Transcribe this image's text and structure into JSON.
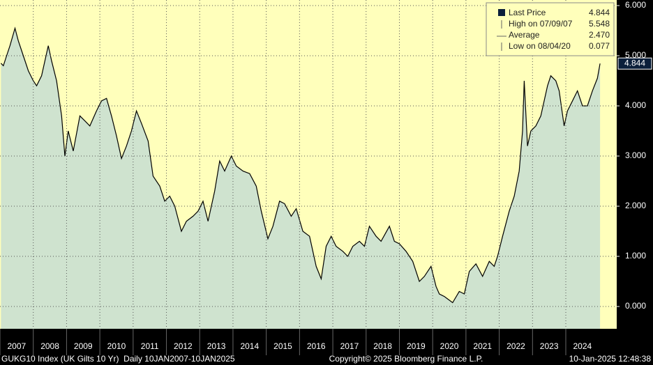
{
  "chart_data": {
    "type": "area",
    "x": [
      2007.03,
      2007.1,
      2007.2,
      2007.3,
      2007.45,
      2007.55,
      2007.7,
      2007.85,
      2008.0,
      2008.1,
      2008.25,
      2008.45,
      2008.55,
      2008.7,
      2008.85,
      2008.95,
      2009.05,
      2009.2,
      2009.4,
      2009.55,
      2009.7,
      2009.9,
      2010.05,
      2010.2,
      2010.35,
      2010.5,
      2010.65,
      2010.8,
      2010.95,
      2011.1,
      2011.25,
      2011.45,
      2011.6,
      2011.8,
      2011.95,
      2012.1,
      2012.25,
      2012.45,
      2012.6,
      2012.8,
      2012.95,
      2013.1,
      2013.25,
      2013.45,
      2013.6,
      2013.75,
      2013.95,
      2014.1,
      2014.3,
      2014.5,
      2014.7,
      2014.85,
      2015.05,
      2015.2,
      2015.4,
      2015.55,
      2015.75,
      2015.9,
      2016.1,
      2016.3,
      2016.5,
      2016.65,
      2016.8,
      2016.95,
      2017.1,
      2017.3,
      2017.45,
      2017.6,
      2017.8,
      2017.95,
      2018.1,
      2018.3,
      2018.45,
      2018.7,
      2018.85,
      2019.0,
      2019.2,
      2019.4,
      2019.6,
      2019.75,
      2019.95,
      2020.1,
      2020.2,
      2020.35,
      2020.6,
      2020.8,
      2020.95,
      2021.1,
      2021.3,
      2021.5,
      2021.7,
      2021.85,
      2021.95,
      2022.1,
      2022.3,
      2022.45,
      2022.6,
      2022.7,
      2022.75,
      2022.85,
      2022.95,
      2023.1,
      2023.25,
      2023.45,
      2023.55,
      2023.7,
      2023.8,
      2023.95,
      2024.05,
      2024.2,
      2024.35,
      2024.5,
      2024.65,
      2024.8,
      2024.95,
      2025.03
    ],
    "series": [
      {
        "name": "Last Price",
        "color": "#000000",
        "fill": "#cfe3cf",
        "values": [
          4.85,
          4.8,
          5.0,
          5.2,
          5.548,
          5.3,
          5.0,
          4.7,
          4.5,
          4.4,
          4.6,
          5.2,
          4.9,
          4.5,
          3.8,
          3.0,
          3.5,
          3.1,
          3.8,
          3.7,
          3.6,
          3.9,
          4.1,
          4.15,
          3.8,
          3.4,
          2.95,
          3.2,
          3.5,
          3.9,
          3.65,
          3.3,
          2.6,
          2.4,
          2.1,
          2.2,
          2.0,
          1.5,
          1.7,
          1.8,
          1.9,
          2.1,
          1.7,
          2.3,
          2.9,
          2.7,
          3.0,
          2.8,
          2.7,
          2.65,
          2.4,
          1.9,
          1.35,
          1.6,
          2.1,
          2.05,
          1.8,
          1.95,
          1.5,
          1.4,
          0.8,
          0.55,
          1.2,
          1.4,
          1.2,
          1.1,
          1.0,
          1.2,
          1.3,
          1.2,
          1.6,
          1.4,
          1.3,
          1.6,
          1.3,
          1.25,
          1.1,
          0.9,
          0.5,
          0.6,
          0.8,
          0.4,
          0.25,
          0.2,
          0.077,
          0.3,
          0.25,
          0.7,
          0.85,
          0.6,
          0.9,
          0.8,
          1.0,
          1.4,
          1.9,
          2.2,
          2.7,
          3.5,
          4.5,
          3.2,
          3.5,
          3.6,
          3.8,
          4.4,
          4.6,
          4.5,
          4.3,
          3.6,
          3.9,
          4.1,
          4.3,
          4.0,
          4.0,
          4.3,
          4.55,
          4.844
        ]
      }
    ],
    "xlim": [
      2007,
      2025.53
    ],
    "xticks": [
      {
        "value": 2007,
        "label": "2007"
      },
      {
        "value": 2008,
        "label": "2008"
      },
      {
        "value": 2009,
        "label": "2009"
      },
      {
        "value": 2010,
        "label": "2010"
      },
      {
        "value": 2011,
        "label": "2011"
      },
      {
        "value": 2012,
        "label": "2012"
      },
      {
        "value": 2013,
        "label": "2013"
      },
      {
        "value": 2014,
        "label": "2014"
      },
      {
        "value": 2015,
        "label": "2015"
      },
      {
        "value": 2016,
        "label": "2016"
      },
      {
        "value": 2017,
        "label": "2017"
      },
      {
        "value": 2018,
        "label": "2018"
      },
      {
        "value": 2019,
        "label": "2019"
      },
      {
        "value": 2020,
        "label": "2020"
      },
      {
        "value": 2021,
        "label": "2021"
      },
      {
        "value": 2022,
        "label": "2022"
      },
      {
        "value": 2023,
        "label": "2023"
      },
      {
        "value": 2024,
        "label": "2024"
      }
    ],
    "ylim": [
      -0.444,
      6.111
    ],
    "yticks": [
      {
        "value": 0,
        "label": "0.000"
      },
      {
        "value": 1,
        "label": "1.000"
      },
      {
        "value": 2,
        "label": "2.000"
      },
      {
        "value": 3,
        "label": "3.000"
      },
      {
        "value": 4,
        "label": "4.000"
      },
      {
        "value": 5,
        "label": "5.000"
      },
      {
        "value": 6,
        "label": "6.000"
      }
    ],
    "grid": true,
    "legend": [
      {
        "label": "Last Price",
        "value": "4.844"
      },
      {
        "label": "High on 07/09/07",
        "value": "5.548"
      },
      {
        "label": "Average",
        "value": "2.470"
      },
      {
        "label": "Low on 08/04/20",
        "value": "0.077"
      }
    ],
    "last_value": {
      "value": 4.844,
      "label": "4.844"
    },
    "footer": {
      "left": "GUKG10 Index (UK Gilts 10 Yr)  Daily 10JAN2007-10JAN2025",
      "center": "Copyright© 2025 Bloomberg Finance L.P.",
      "right": "10-Jan-2025 12:48:38"
    }
  }
}
